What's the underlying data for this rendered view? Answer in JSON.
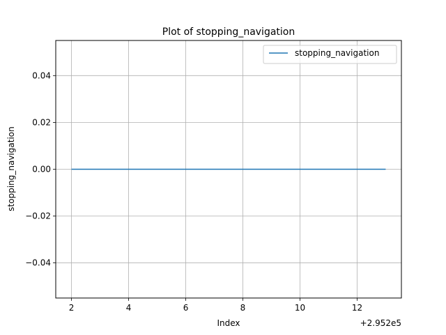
{
  "chart_data": {
    "type": "line",
    "title": "Plot of stopping_navigation",
    "xlabel": "Index",
    "ylabel": "stopping_navigation",
    "x_offset_label": "+2.952e5",
    "xlim": [
      1.45,
      13.55
    ],
    "ylim": [
      -0.055,
      0.055
    ],
    "x_ticks": [
      2,
      4,
      6,
      8,
      10,
      12
    ],
    "x_tick_labels": [
      "2",
      "4",
      "6",
      "8",
      "10",
      "12"
    ],
    "y_ticks": [
      -0.04,
      -0.02,
      0.0,
      0.02,
      0.04
    ],
    "y_tick_labels": [
      "−0.04",
      "−0.02",
      "0.00",
      "0.02",
      "0.04"
    ],
    "grid": true,
    "legend_position": "top-right",
    "series": [
      {
        "name": "stopping_navigation",
        "color": "#1f77b4",
        "x": [
          2,
          3,
          4,
          5,
          6,
          7,
          8,
          9,
          10,
          11,
          12,
          13
        ],
        "values": [
          0,
          0,
          0,
          0,
          0,
          0,
          0,
          0,
          0,
          0,
          0,
          0
        ]
      }
    ]
  }
}
